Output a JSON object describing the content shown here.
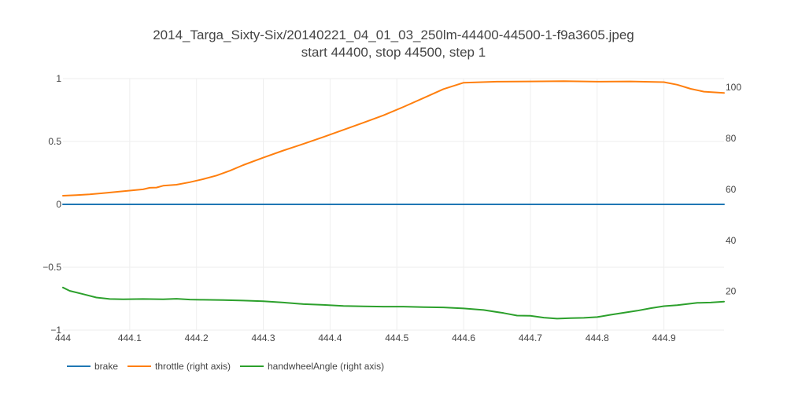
{
  "chart_data": {
    "type": "line",
    "title": "2014_Targa_Sixty-Six/20140221_04_01_03_250lm-44400-44500-1-f9a3605.jpeg",
    "subtitle": "start 44400, stop 44500, step 1",
    "x_ticks": [
      "444",
      "444.1",
      "444.2",
      "444.3",
      "444.4",
      "444.5",
      "444.6",
      "444.7",
      "444.8",
      "444.9"
    ],
    "xlim": [
      444,
      444.99
    ],
    "ylim_left": [
      -1,
      1
    ],
    "ylim_right": [
      4.8,
      103.4
    ],
    "y_left_ticks": [
      "1",
      "0.5",
      "0",
      "−0.5",
      "−1"
    ],
    "y_left_tick_values": [
      1,
      0.5,
      0,
      -0.5,
      -1
    ],
    "y_right_ticks": [
      "100",
      "80",
      "60",
      "40",
      "20"
    ],
    "y_right_tick_values": [
      100,
      80,
      60,
      40,
      20
    ],
    "grid": true,
    "legend_position": "bottom-left",
    "series": [
      {
        "name": "brake",
        "axis": "left",
        "color": "#1f77b4",
        "x": [
          444,
          444.99
        ],
        "y": [
          0,
          0
        ]
      },
      {
        "name": "throttle (right axis)",
        "axis": "right",
        "color": "#ff7f0e",
        "x": [
          444,
          444.02,
          444.04,
          444.06,
          444.08,
          444.1,
          444.12,
          444.13,
          444.14,
          444.15,
          444.17,
          444.19,
          444.21,
          444.23,
          444.25,
          444.27,
          444.3,
          444.33,
          444.36,
          444.39,
          444.42,
          444.45,
          444.48,
          444.51,
          444.54,
          444.57,
          444.6,
          444.65,
          444.7,
          444.75,
          444.8,
          444.85,
          444.9,
          444.92,
          444.94,
          444.96,
          444.99
        ],
        "y": [
          57.5,
          57.7,
          58.0,
          58.5,
          59.0,
          59.5,
          60.0,
          60.6,
          60.7,
          61.4,
          61.8,
          62.8,
          64.0,
          65.4,
          67.3,
          69.5,
          72.4,
          75.2,
          77.8,
          80.5,
          83.3,
          86.1,
          89.0,
          92.3,
          95.8,
          99.3,
          101.8,
          102.2,
          102.3,
          102.4,
          102.2,
          102.3,
          102.0,
          101.0,
          99.4,
          98.3,
          97.8
        ]
      },
      {
        "name": "handwheelAngle (right axis)",
        "axis": "right",
        "color": "#2ca02c",
        "x": [
          444,
          444.01,
          444.03,
          444.05,
          444.07,
          444.09,
          444.12,
          444.15,
          444.17,
          444.19,
          444.21,
          444.24,
          444.27,
          444.3,
          444.33,
          444.36,
          444.39,
          444.42,
          444.45,
          444.48,
          444.51,
          444.54,
          444.57,
          444.6,
          444.63,
          444.66,
          444.68,
          444.7,
          444.72,
          444.74,
          444.76,
          444.78,
          444.8,
          444.82,
          444.84,
          444.86,
          444.88,
          444.9,
          444.92,
          444.95,
          444.97,
          444.99
        ],
        "y": [
          21.5,
          20.2,
          18.9,
          17.6,
          17.0,
          16.9,
          17.0,
          16.9,
          17.1,
          16.8,
          16.7,
          16.6,
          16.4,
          16.1,
          15.6,
          15.0,
          14.7,
          14.3,
          14.1,
          14.0,
          14.0,
          13.8,
          13.7,
          13.3,
          12.7,
          11.5,
          10.5,
          10.4,
          9.7,
          9.3,
          9.5,
          9.6,
          9.9,
          10.8,
          11.6,
          12.4,
          13.4,
          14.2,
          14.6,
          15.5,
          15.6,
          16.0
        ]
      }
    ]
  }
}
